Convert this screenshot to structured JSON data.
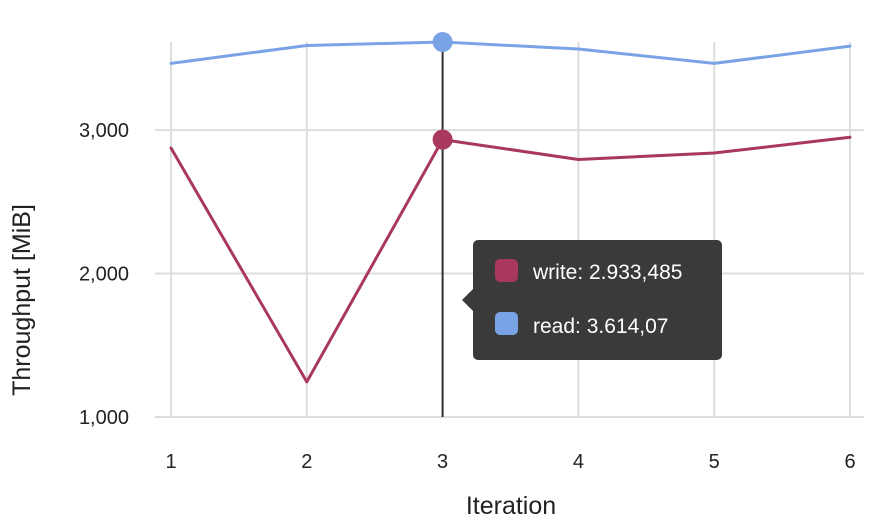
{
  "chart_data": {
    "type": "line",
    "x": [
      1,
      2,
      3,
      4,
      5,
      6
    ],
    "xlabel": "Iteration",
    "ylabel": "Throughput [MiB]",
    "ylim": [
      1000,
      3650
    ],
    "y_ticks": [
      1000,
      2000,
      3000
    ],
    "y_tick_labels": [
      "1,000",
      "2,000",
      "3,000"
    ],
    "x_tick_labels": [
      "1",
      "2",
      "3",
      "4",
      "5",
      "6"
    ],
    "grid": true,
    "series": [
      {
        "name": "write",
        "color": "#a8385d",
        "values": [
          2875,
          1245,
          2933.485,
          2795,
          2840,
          2950
        ]
      },
      {
        "name": "read",
        "color": "#7aa3e5",
        "values": [
          3465,
          3590,
          3614.07,
          3565,
          3465,
          3585
        ]
      }
    ],
    "highlight": {
      "x": 3,
      "tooltip": [
        {
          "label": "write: 2.933,485",
          "color": "#a8385d"
        },
        {
          "label": "read: 3.614,07",
          "color": "#7aa3e5"
        }
      ]
    }
  }
}
